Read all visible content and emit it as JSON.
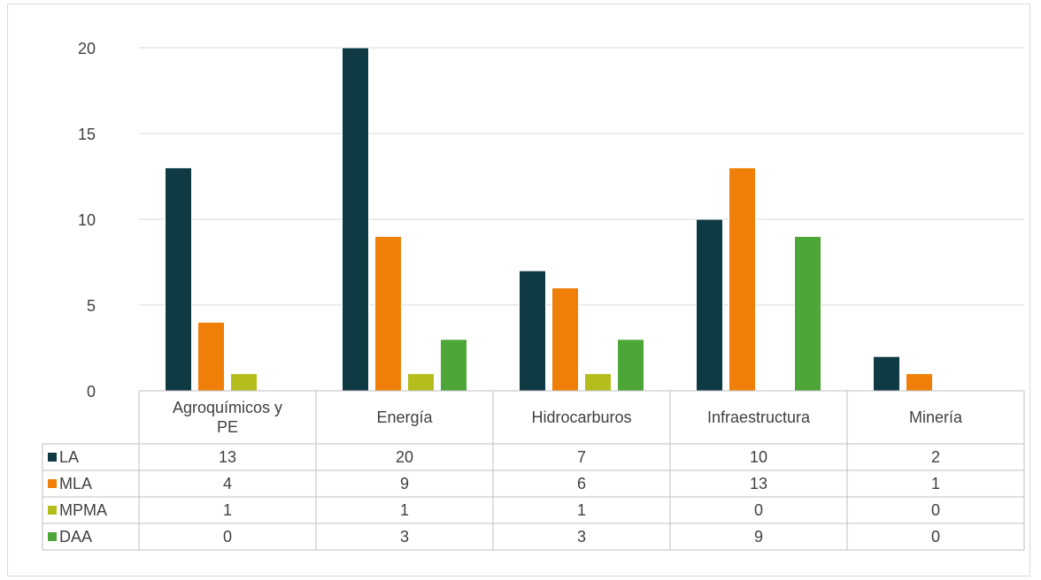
{
  "chart_data": {
    "type": "bar",
    "title": "",
    "xlabel": "",
    "ylabel": "",
    "ylim": [
      0,
      20
    ],
    "yticks": [
      "0",
      "5",
      "10",
      "15",
      "20"
    ],
    "grid": true,
    "legend": "data-table",
    "categories": [
      "Agroquímicos y PE",
      "Energía",
      "Hidrocarburos",
      "Infraestructura",
      "Minería"
    ],
    "series": [
      {
        "name": "LA",
        "color": "#0e3a44",
        "values": [
          13,
          20,
          7,
          10,
          2
        ]
      },
      {
        "name": "MLA",
        "color": "#f07f09",
        "values": [
          4,
          9,
          6,
          13,
          1
        ]
      },
      {
        "name": "MPMA",
        "color": "#b5bd1c",
        "values": [
          1,
          1,
          1,
          0,
          0
        ]
      },
      {
        "name": "DAA",
        "color": "#4da638",
        "values": [
          0,
          3,
          3,
          9,
          0
        ]
      }
    ],
    "table_values": [
      [
        "13",
        "20",
        "7",
        "10",
        "2"
      ],
      [
        "4",
        "9",
        "6",
        "13",
        "1"
      ],
      [
        "1",
        "1",
        "1",
        "0",
        "0"
      ],
      [
        "0",
        "3",
        "3",
        "9",
        "0"
      ]
    ]
  }
}
